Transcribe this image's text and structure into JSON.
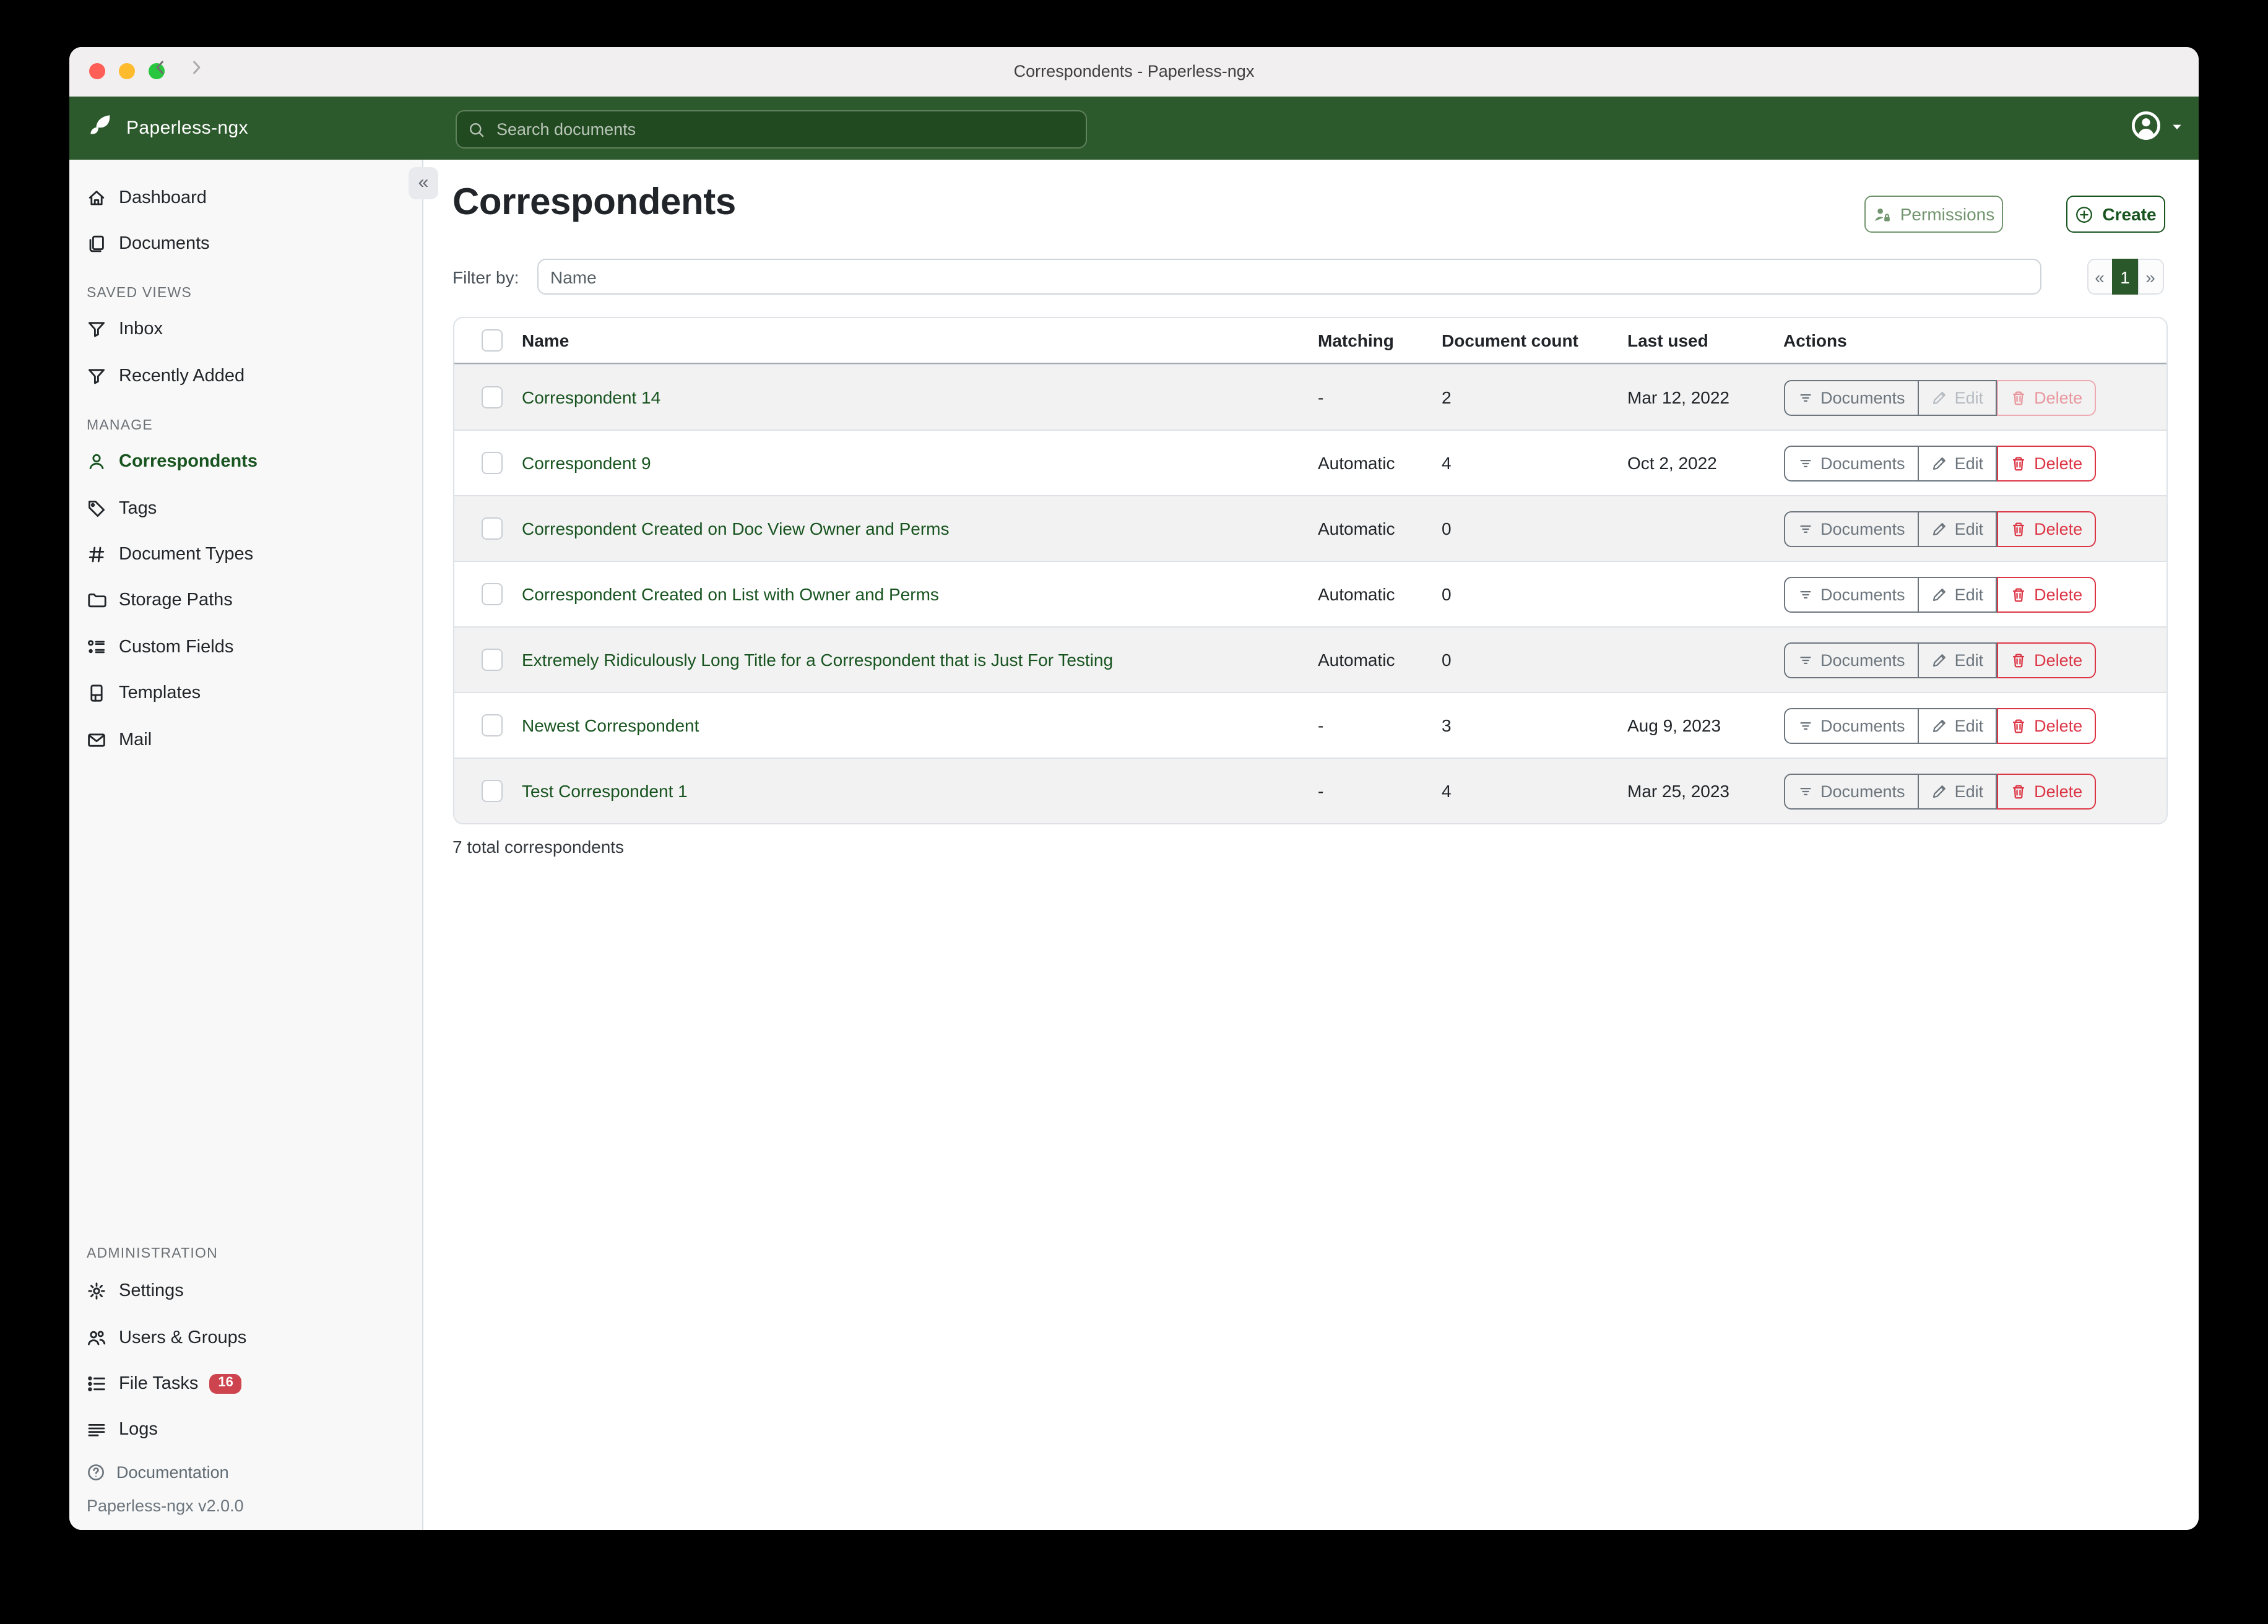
{
  "window": {
    "title": "Correspondents - Paperless-ngx"
  },
  "navbar": {
    "brand": "Paperless-ngx",
    "search_placeholder": "Search documents"
  },
  "sidebar": {
    "sections": [
      {
        "header": "",
        "items": [
          {
            "label": "Dashboard",
            "icon": "house"
          },
          {
            "label": "Documents",
            "icon": "copy"
          }
        ]
      },
      {
        "header": "SAVED VIEWS",
        "items": [
          {
            "label": "Inbox",
            "icon": "funnel"
          },
          {
            "label": "Recently Added",
            "icon": "funnel"
          }
        ]
      },
      {
        "header": "MANAGE",
        "items": [
          {
            "label": "Correspondents",
            "icon": "person",
            "active": true
          },
          {
            "label": "Tags",
            "icon": "tag"
          },
          {
            "label": "Document Types",
            "icon": "hash"
          },
          {
            "label": "Storage Paths",
            "icon": "folder"
          },
          {
            "label": "Custom Fields",
            "icon": "radios"
          },
          {
            "label": "Templates",
            "icon": "file"
          },
          {
            "label": "Mail",
            "icon": "envelope"
          }
        ]
      },
      {
        "header": "ADMINISTRATION",
        "items": [
          {
            "label": "Settings",
            "icon": "gear"
          },
          {
            "label": "Users & Groups",
            "icon": "people"
          },
          {
            "label": "File Tasks",
            "icon": "listcheck",
            "badge": "16"
          },
          {
            "label": "Logs",
            "icon": "lines"
          }
        ]
      }
    ],
    "documentation": "Documentation",
    "version": "Paperless-ngx v2.0.0"
  },
  "page": {
    "title": "Correspondents",
    "collapse_glyph": "«",
    "permissions_label": "Permissions",
    "create_label": "Create",
    "filter_label": "Filter by:",
    "filter_placeholder": "Name",
    "pagination": {
      "prev": "«",
      "current": "1",
      "next": "»"
    },
    "total": "7 total correspondents"
  },
  "table": {
    "headers": {
      "name": "Name",
      "matching": "Matching",
      "count": "Document count",
      "last_used": "Last used",
      "actions": "Actions"
    },
    "action_labels": {
      "documents": "Documents",
      "edit": "Edit",
      "delete": "Delete"
    },
    "rows": [
      {
        "name": "Correspondent 14",
        "matching": "-",
        "count": "2",
        "last_used": "Mar 12, 2022",
        "edit_disabled": true,
        "delete_disabled": true
      },
      {
        "name": "Correspondent 9",
        "matching": "Automatic",
        "count": "4",
        "last_used": "Oct 2, 2022"
      },
      {
        "name": "Correspondent Created on Doc View Owner and Perms",
        "matching": "Automatic",
        "count": "0",
        "last_used": ""
      },
      {
        "name": "Correspondent Created on List with Owner and Perms",
        "matching": "Automatic",
        "count": "0",
        "last_used": ""
      },
      {
        "name": "Extremely Ridiculously Long Title for a Correspondent that is Just For Testing",
        "matching": "Automatic",
        "count": "0",
        "last_used": ""
      },
      {
        "name": "Newest Correspondent",
        "matching": "-",
        "count": "3",
        "last_used": "Aug 9, 2023"
      },
      {
        "name": "Test Correspondent 1",
        "matching": "-",
        "count": "4",
        "last_used": "Mar 25, 2023"
      }
    ]
  },
  "colors": {
    "accent_green": "#17541f",
    "navbar_green": "#2d5a2c",
    "danger_red": "#dc3545",
    "badge_red": "#ce444e"
  }
}
